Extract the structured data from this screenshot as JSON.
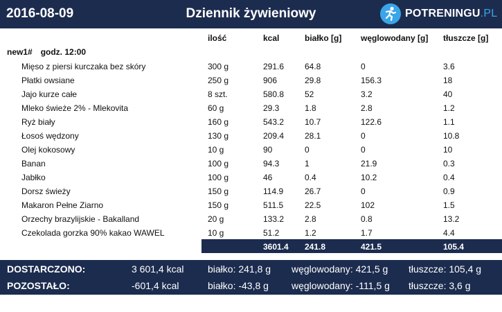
{
  "header": {
    "date": "2016-08-09",
    "title": "Dziennik żywieniowy",
    "logo_main": "POTRENINGU",
    "logo_suffix": ".PL"
  },
  "columns": {
    "qty": "ilość",
    "kcal": "kcal",
    "protein": "białko [g]",
    "carbs": "węglowodany [g]",
    "fat": "tłuszcze [g]"
  },
  "meal": {
    "name": "new1#",
    "time": "godz. 12:00"
  },
  "items": [
    {
      "name": "Mięso z piersi kurczaka bez skóry",
      "qty": "300 g",
      "kcal": "291.6",
      "protein": "64.8",
      "carbs": "0",
      "fat": "3.6"
    },
    {
      "name": "Płatki owsiane",
      "qty": "250 g",
      "kcal": "906",
      "protein": "29.8",
      "carbs": "156.3",
      "fat": "18"
    },
    {
      "name": "Jajo kurze całe",
      "qty": "8 szt.",
      "kcal": "580.8",
      "protein": "52",
      "carbs": "3.2",
      "fat": "40"
    },
    {
      "name": "Mleko świeże 2% - Mlekovita",
      "qty": "60 g",
      "kcal": "29.3",
      "protein": "1.8",
      "carbs": "2.8",
      "fat": "1.2"
    },
    {
      "name": "Ryż biały",
      "qty": "160 g",
      "kcal": "543.2",
      "protein": "10.7",
      "carbs": "122.6",
      "fat": "1.1"
    },
    {
      "name": "Łosoś wędzony",
      "qty": "130 g",
      "kcal": "209.4",
      "protein": "28.1",
      "carbs": "0",
      "fat": "10.8"
    },
    {
      "name": "Olej kokosowy",
      "qty": "10 g",
      "kcal": "90",
      "protein": "0",
      "carbs": "0",
      "fat": "10"
    },
    {
      "name": "Banan",
      "qty": "100 g",
      "kcal": "94.3",
      "protein": "1",
      "carbs": "21.9",
      "fat": "0.3"
    },
    {
      "name": "Jabłko",
      "qty": "100 g",
      "kcal": "46",
      "protein": "0.4",
      "carbs": "10.2",
      "fat": "0.4"
    },
    {
      "name": "Dorsz świeży",
      "qty": "150 g",
      "kcal": "114.9",
      "protein": "26.7",
      "carbs": "0",
      "fat": "0.9"
    },
    {
      "name": "Makaron Pełne Ziarno",
      "qty": "150 g",
      "kcal": "511.5",
      "protein": "22.5",
      "carbs": "102",
      "fat": "1.5"
    },
    {
      "name": "Orzechy brazylijskie - Bakalland",
      "qty": "20 g",
      "kcal": "133.2",
      "protein": "2.8",
      "carbs": "0.8",
      "fat": "13.2"
    },
    {
      "name": "Czekolada gorzka 90% kakao WAWEL",
      "qty": "10 g",
      "kcal": "51.2",
      "protein": "1.2",
      "carbs": "1.7",
      "fat": "4.4"
    }
  ],
  "totals": {
    "kcal": "3601.4",
    "protein": "241.8",
    "carbs": "421.5",
    "fat": "105.4"
  },
  "summary": {
    "delivered": {
      "label": "DOSTARCZONO:",
      "kcal": "3 601,4 kcal",
      "protein": "białko: 241,8 g",
      "carbs": "węglowodany: 421,5 g",
      "fat": "tłuszcze: 105,4 g"
    },
    "remaining": {
      "label": "POZOSTAŁO:",
      "kcal": "-601,4 kcal",
      "protein": "białko: -43,8 g",
      "carbs": "węglowodany: -111,5 g",
      "fat": "tłuszcze: 3,6 g"
    }
  },
  "colors": {
    "navy": "#1c2c4f",
    "accent": "#3aa5e8"
  },
  "icons": {
    "logo": "runner-icon"
  }
}
